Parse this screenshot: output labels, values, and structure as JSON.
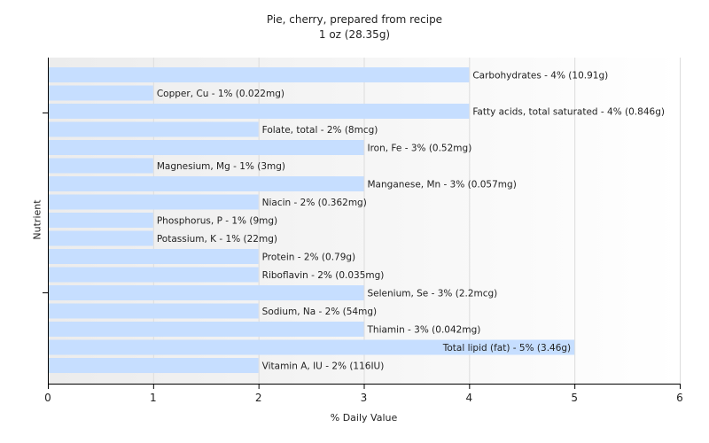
{
  "chart_data": {
    "type": "bar",
    "orientation": "horizontal",
    "title": "Pie, cherry, prepared from recipe",
    "subtitle": "1 oz (28.35g)",
    "xlabel": "% Daily Value",
    "ylabel": "Nutrient",
    "xlim": [
      0,
      6
    ],
    "xticks": [
      0,
      1,
      2,
      3,
      4,
      5,
      6
    ],
    "grid": true,
    "bar_color": "#c6deff",
    "categories": [
      "Carbohydrates",
      "Copper, Cu",
      "Fatty acids, total saturated",
      "Folate, total",
      "Iron, Fe",
      "Magnesium, Mg",
      "Manganese, Mn",
      "Niacin",
      "Phosphorus, P",
      "Potassium, K",
      "Protein",
      "Riboflavin",
      "Selenium, Se",
      "Sodium, Na",
      "Thiamin",
      "Total lipid (fat)",
      "Vitamin A, IU"
    ],
    "values": [
      4,
      1,
      4,
      2,
      3,
      1,
      3,
      2,
      1,
      1,
      2,
      2,
      3,
      2,
      3,
      5,
      2
    ],
    "labels": [
      "Carbohydrates - 4% (10.91g)",
      "Copper, Cu - 1% (0.022mg)",
      "Fatty acids, total saturated - 4% (0.846g)",
      "Folate, total - 2% (8mcg)",
      "Iron, Fe - 3% (0.52mg)",
      "Magnesium, Mg - 1% (3mg)",
      "Manganese, Mn - 3% (0.057mg)",
      "Niacin - 2% (0.362mg)",
      "Phosphorus, P - 1% (9mg)",
      "Potassium, K - 1% (22mg)",
      "Protein - 2% (0.79g)",
      "Riboflavin - 2% (0.035mg)",
      "Selenium, Se - 3% (2.2mcg)",
      "Sodium, Na - 2% (54mg)",
      "Thiamin - 3% (0.042mg)",
      "Total lipid (fat) - 5% (3.46g)",
      "Vitamin A, IU - 2% (116IU)"
    ]
  }
}
